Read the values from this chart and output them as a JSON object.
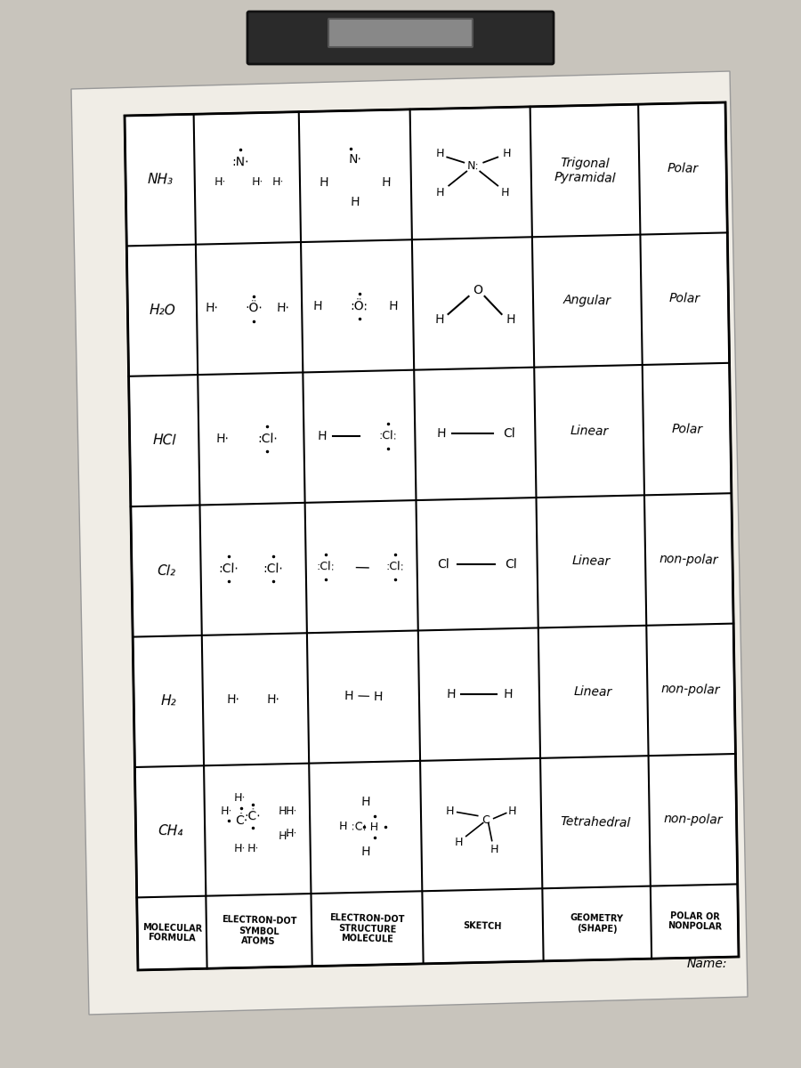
{
  "bg_color": "#c8c4bc",
  "paper_color": "#f0ede6",
  "table_bg": "#ffffff",
  "header_cols": [
    "MOLECULAR\nFORMULA",
    "ELECTRON-DOT\nSYMBOL\nATOMS",
    "ELECTRON-DOT\nSTRUCTURE\nMOLECULE",
    "SKETCH",
    "GEOMETRY\n(SHAPE)",
    "POLAR OR\nNONPOLAR"
  ],
  "formulas": [
    "CH₄",
    "H₂",
    "Cl₂",
    "HCl",
    "H₂O",
    "NH₃"
  ],
  "geometries": [
    "Tetrahedral",
    "Linear",
    "Linear",
    "Linear",
    "Angular",
    "Trigonal\nPyramidal"
  ],
  "polars": [
    "non-polar",
    "non-polar",
    "non-polar",
    "Polar",
    "Polar",
    "Polar"
  ]
}
